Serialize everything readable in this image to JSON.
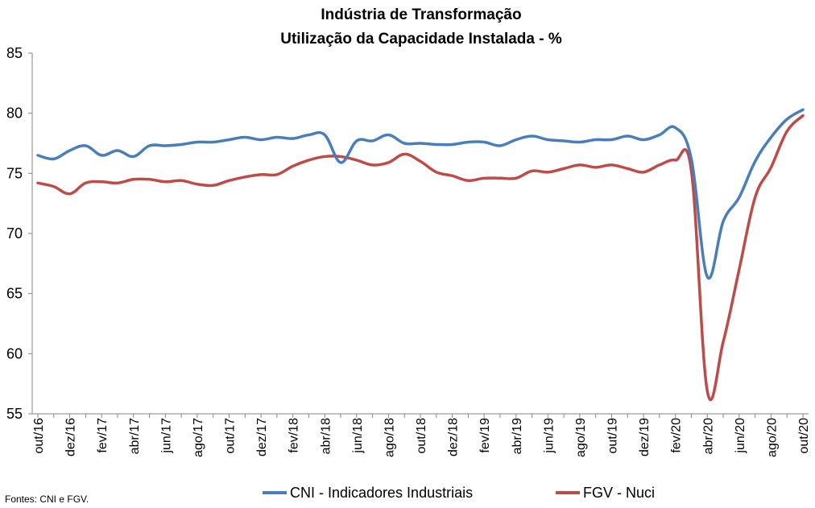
{
  "chart_data": {
    "type": "line",
    "title": "Indústria de Transformação",
    "subtitle": "Utilização da Capacidade Instalada - %",
    "xlabel": "",
    "ylabel": "",
    "ylim": [
      55,
      85
    ],
    "yticks": [
      "55",
      "60",
      "65",
      "70",
      "75",
      "80",
      "85"
    ],
    "grid": false,
    "legend": "bottom",
    "x": [
      "out/16",
      "nov/16",
      "dez/16",
      "jan/17",
      "fev/17",
      "mar/17",
      "abr/17",
      "mai/17",
      "jun/17",
      "jul/17",
      "ago/17",
      "set/17",
      "out/17",
      "nov/17",
      "dez/17",
      "jan/18",
      "fev/18",
      "mar/18",
      "abr/18",
      "mai/18",
      "jun/18",
      "jul/18",
      "ago/18",
      "set/18",
      "out/18",
      "nov/18",
      "dez/18",
      "jan/19",
      "fev/19",
      "mar/19",
      "abr/19",
      "mai/19",
      "jun/19",
      "jul/19",
      "ago/19",
      "set/19",
      "out/19",
      "nov/19",
      "dez/19",
      "jan/20",
      "fev/20",
      "mar/20",
      "abr/20",
      "mai/20",
      "jun/20",
      "jul/20",
      "ago/20",
      "set/20",
      "out/20"
    ],
    "xtick_labels": [
      "out/16",
      "dez/16",
      "fev/17",
      "abr/17",
      "jun/17",
      "ago/17",
      "out/17",
      "dez/17",
      "fev/18",
      "abr/18",
      "jun/18",
      "ago/18",
      "out/18",
      "dez/18",
      "fev/19",
      "abr/19",
      "jun/19",
      "ago/19",
      "out/19",
      "dez/19",
      "fev/20",
      "abr/20",
      "jun/20",
      "ago/20",
      "out/20"
    ],
    "series": [
      {
        "name": "CNI - Indicadores Industriais",
        "color": "#4a7ebb",
        "values": [
          76.5,
          76.2,
          76.9,
          77.3,
          76.5,
          76.9,
          76.4,
          77.3,
          77.3,
          77.4,
          77.6,
          77.6,
          77.8,
          78.0,
          77.8,
          78.0,
          77.9,
          78.2,
          78.2,
          75.9,
          77.7,
          77.7,
          78.2,
          77.5,
          77.5,
          77.4,
          77.4,
          77.6,
          77.6,
          77.3,
          77.8,
          78.1,
          77.8,
          77.7,
          77.6,
          77.8,
          77.8,
          78.1,
          77.8,
          78.2,
          78.8,
          76.2,
          66.4,
          71.0,
          73.0,
          76.0,
          78.0,
          79.5,
          80.3
        ]
      },
      {
        "name": "FGV - Nuci",
        "color": "#be4b48",
        "values": [
          74.2,
          73.9,
          73.3,
          74.2,
          74.3,
          74.2,
          74.5,
          74.5,
          74.3,
          74.4,
          74.1,
          74.0,
          74.4,
          74.7,
          74.9,
          74.9,
          75.6,
          76.1,
          76.4,
          76.4,
          76.1,
          75.7,
          75.9,
          76.6,
          76.0,
          75.1,
          74.8,
          74.4,
          74.6,
          74.6,
          74.6,
          75.2,
          75.1,
          75.4,
          75.7,
          75.5,
          75.7,
          75.4,
          75.1,
          75.7,
          76.1,
          75.2,
          56.9,
          61.0,
          67.0,
          73.0,
          75.5,
          78.5,
          79.8
        ]
      }
    ],
    "source": "Fontes: CNI e FGV."
  }
}
